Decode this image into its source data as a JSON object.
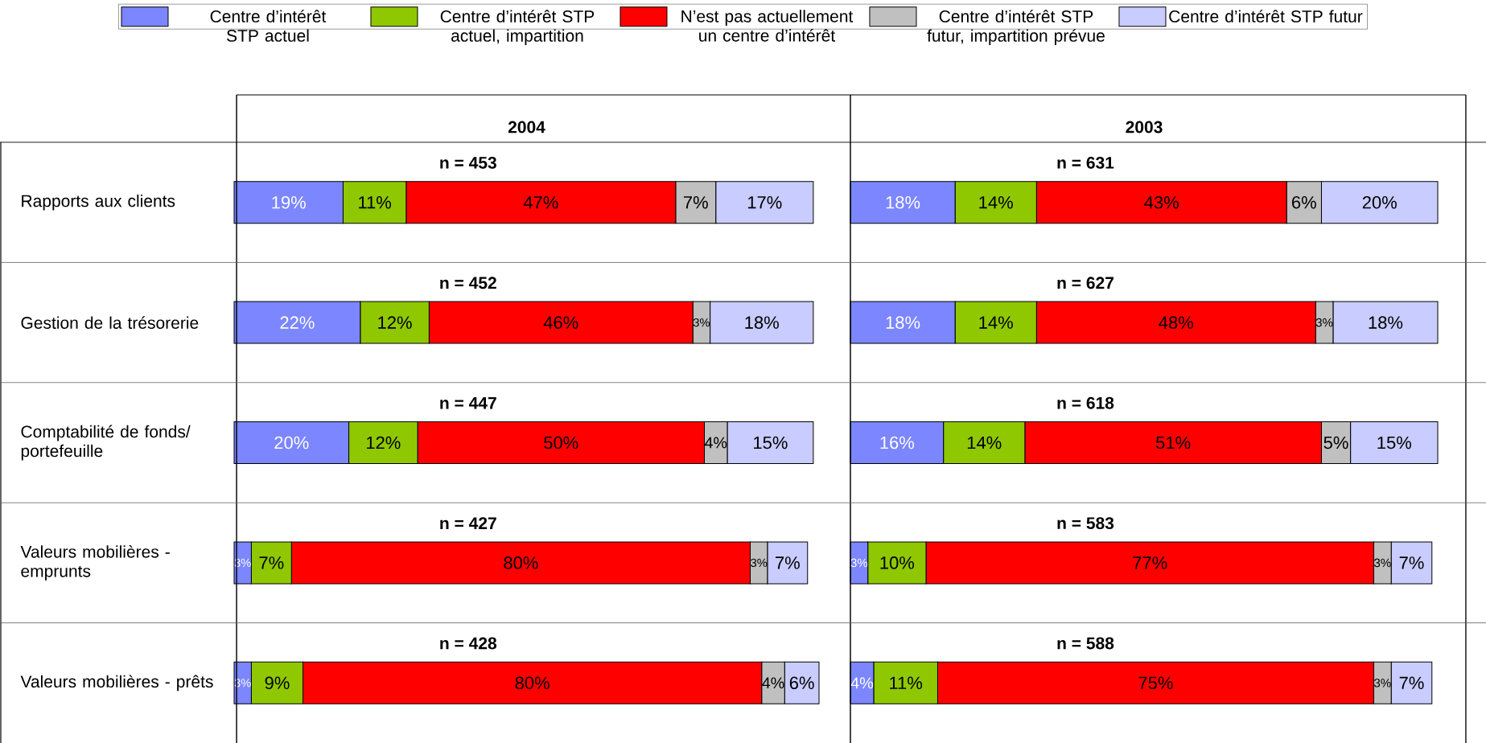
{
  "chart_data": [
    {
      "type": "bar",
      "orientation": "horizontal",
      "stacked": true,
      "title": "2004",
      "legend": "top",
      "categories": [
        "Rapports aux clients",
        "Gestion de la trésorerie",
        "Comptabilité de fonds/ portefeuille",
        "Valeurs mobilières - emprunts",
        "Valeurs mobilières - prêts"
      ],
      "annotations": [
        "n = 453",
        "n = 452",
        "n = 447",
        "n = 427",
        "n = 428"
      ],
      "series": [
        {
          "name": "Centre d’intérêt STP actuel",
          "color": "#7b86ff",
          "values": [
            19,
            22,
            20,
            3,
            3
          ],
          "value_labels": [
            "19%",
            "22%",
            "20%",
            "3%",
            "3%"
          ]
        },
        {
          "name": "Centre d’intérêt STP actuel, impartition",
          "color": "#8fc800",
          "values": [
            11,
            12,
            12,
            7,
            9
          ],
          "value_labels": [
            "11%",
            "12%",
            "12%",
            "7%",
            "9%"
          ]
        },
        {
          "name": "N’est pas actuellement un centre d’intérêt",
          "color": "#ff0000",
          "values": [
            47,
            46,
            50,
            80,
            80
          ],
          "value_labels": [
            "47%",
            "46%",
            "50%",
            "80%",
            "80%"
          ]
        },
        {
          "name": "Centre d’intérêt STP futur, impartition prévue",
          "color": "#c0c0c0",
          "values": [
            7,
            3,
            4,
            3,
            4
          ],
          "value_labels": [
            "7%",
            "3%",
            "4%",
            "3%",
            "4%"
          ]
        },
        {
          "name": "Centre d’intérêt STP futur",
          "color": "#c8ccff",
          "values": [
            17,
            18,
            15,
            7,
            6
          ],
          "value_labels": [
            "17%",
            "18%",
            "15%",
            "7%",
            "6%"
          ]
        }
      ]
    },
    {
      "type": "bar",
      "orientation": "horizontal",
      "stacked": true,
      "title": "2003",
      "categories": [
        null,
        null,
        null,
        null,
        null
      ],
      "annotations": [
        "n = 631",
        "n = 627",
        "n = 618",
        "n = 583",
        "n = 588"
      ],
      "series": [
        {
          "color": "#7b86ff",
          "values": [
            18,
            18,
            16,
            3,
            4
          ],
          "value_labels": [
            "18%",
            "18%",
            "16%",
            "3%",
            "4%"
          ]
        },
        {
          "color": "#8fc800",
          "values": [
            14,
            14,
            14,
            10,
            11
          ],
          "value_labels": [
            "14%",
            "14%",
            "14%",
            "10%",
            "11%"
          ]
        },
        {
          "color": "#ff0000",
          "values": [
            43,
            48,
            51,
            77,
            75
          ],
          "value_labels": [
            "43%",
            "48%",
            "51%",
            "77%",
            "75%"
          ]
        },
        {
          "color": "#c0c0c0",
          "values": [
            6,
            3,
            5,
            3,
            3
          ],
          "value_labels": [
            "6%",
            "3%",
            "5%",
            "3%",
            "3%"
          ]
        },
        {
          "color": "#c8ccff",
          "values": [
            20,
            18,
            15,
            7,
            7
          ],
          "value_labels": [
            "20%",
            "18%",
            "15%",
            "7%",
            "7%"
          ]
        }
      ]
    }
  ]
}
